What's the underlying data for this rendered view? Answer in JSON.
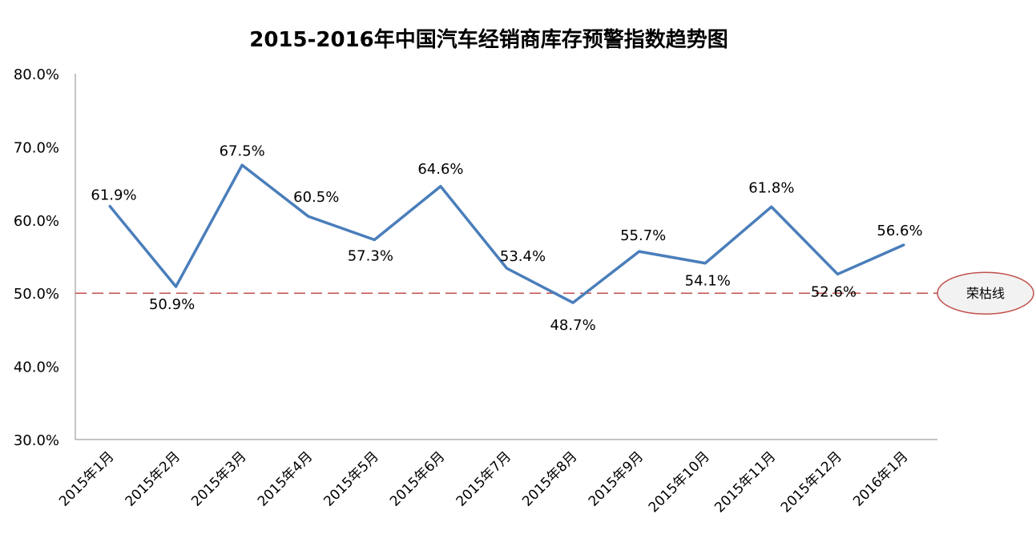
{
  "chart_data": {
    "type": "line",
    "title": "2015-2016年中国汽车经销商库存预警指数趋势图",
    "xlabel": "",
    "ylabel": "",
    "categories": [
      "2015年1月",
      "2015年2月",
      "2015年3月",
      "2015年4月",
      "2015年5月",
      "2015年6月",
      "2015年7月",
      "2015年8月",
      "2015年9月",
      "2015年10月",
      "2015年11月",
      "2015年12月",
      "2016年1月"
    ],
    "series": [
      {
        "values": [
          61.9,
          50.9,
          67.5,
          60.5,
          57.3,
          64.6,
          53.4,
          48.7,
          55.7,
          54.1,
          61.8,
          52.6,
          56.6
        ],
        "color": "#4a7ebb"
      }
    ],
    "data_labels": [
      "61.9%",
      "50.9%",
      "67.5%",
      "60.5%",
      "57.3%",
      "64.6%",
      "53.4%",
      "48.7%",
      "55.7%",
      "54.1%",
      "61.8%",
      "52.6%",
      "56.6%"
    ],
    "ylim": [
      30,
      80
    ],
    "yticks": [
      30,
      40,
      50,
      60,
      70,
      80
    ],
    "ytick_labels": [
      "30.0%",
      "40.0%",
      "50.0%",
      "60.0%",
      "70.0%",
      "80.0%"
    ],
    "grid": false,
    "reference_line": {
      "value": 50,
      "label": "荣枯线",
      "color": "#c0504d",
      "style": "dashed"
    }
  }
}
